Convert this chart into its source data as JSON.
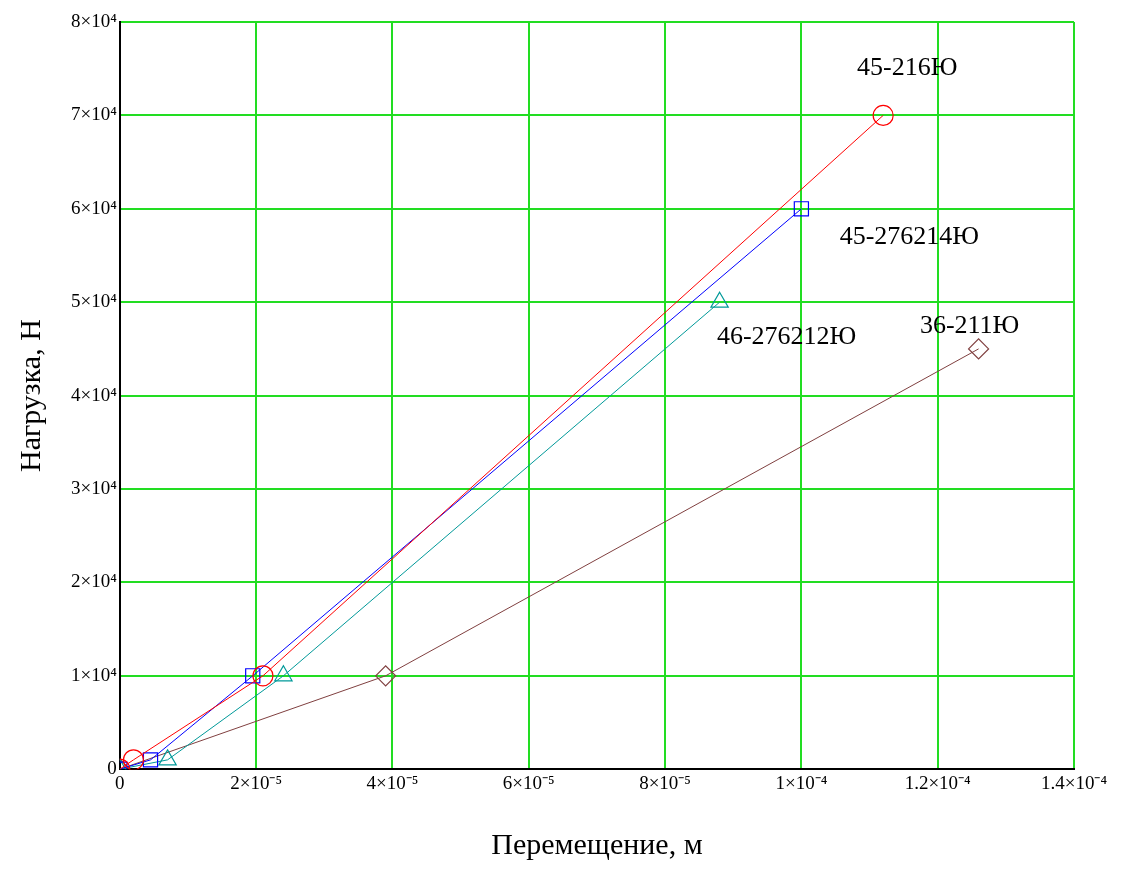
{
  "chart_data": {
    "type": "line",
    "xlabel": "Перемещение, м",
    "ylabel": "Нагрузка, Н",
    "xlim": [
      0,
      0.00014
    ],
    "ylim": [
      0,
      80000
    ],
    "xticks": [
      0,
      {
        "value": 2e-05,
        "label": "2×10⁻⁵"
      },
      {
        "value": 4e-05,
        "label": "4×10⁻⁵"
      },
      {
        "value": 6e-05,
        "label": "6×10⁻⁵"
      },
      {
        "value": 8e-05,
        "label": "8×10⁻⁵"
      },
      {
        "value": 0.0001,
        "label": "1×10⁻⁴"
      },
      {
        "value": 0.00012,
        "label": "1.2×10⁻⁴"
      },
      {
        "value": 0.00014,
        "label": "1.4×10⁻⁴"
      }
    ],
    "yticks": [
      0,
      {
        "value": 10000,
        "label": "1×10⁴"
      },
      {
        "value": 20000,
        "label": "2×10⁴"
      },
      {
        "value": 30000,
        "label": "3×10⁴"
      },
      {
        "value": 40000,
        "label": "4×10⁴"
      },
      {
        "value": 50000,
        "label": "5×10⁴"
      },
      {
        "value": 60000,
        "label": "6×10⁴"
      },
      {
        "value": 70000,
        "label": "7×10⁴"
      },
      {
        "value": 80000,
        "label": "8×10⁴"
      }
    ],
    "grid": true,
    "legend": false,
    "line_style": "solid",
    "series": [
      {
        "name": "45-216Ю",
        "color": "#ff0000",
        "marker": "circle",
        "x": [
          0,
          2e-06,
          2.1e-05,
          0.000112
        ],
        "values": [
          0,
          1000,
          10000,
          70000
        ]
      },
      {
        "name": "45-276214Ю",
        "color": "#0000ff",
        "marker": "square",
        "x": [
          0,
          4.5e-06,
          1.95e-05,
          0.0001
        ],
        "values": [
          0,
          1000,
          10000,
          60000
        ]
      },
      {
        "name": "46-276212Ю",
        "color": "#009999",
        "marker": "triangle",
        "x": [
          0,
          7e-06,
          2.4e-05,
          8.8e-05
        ],
        "values": [
          0,
          1000,
          10000,
          50000
        ]
      },
      {
        "name": "36-211Ю",
        "color": "#804040",
        "marker": "diamond",
        "x": [
          0,
          3.9e-05,
          0.000126
        ],
        "values": [
          0,
          10000,
          45000
        ]
      }
    ]
  }
}
